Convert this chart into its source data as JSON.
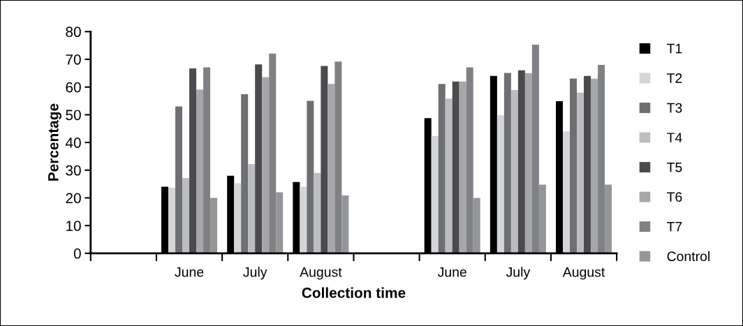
{
  "chart_data": {
    "type": "bar",
    "xlabel": "Collection time",
    "ylabel": "Percentage",
    "categories": [
      null,
      "June",
      "July",
      "August",
      null,
      "June",
      "July",
      "August"
    ],
    "series": [
      {
        "name": "T1",
        "color": "#000000",
        "values": [
          null,
          24,
          28,
          25.7,
          null,
          48.8,
          64,
          54.9
        ]
      },
      {
        "name": "T2",
        "color": "#d4d5d7",
        "values": [
          null,
          23.7,
          25.3,
          24,
          null,
          42.3,
          49.8,
          44
        ]
      },
      {
        "name": "T3",
        "color": "#6e6f72",
        "values": [
          null,
          53,
          57.4,
          55,
          null,
          61.1,
          65.1,
          63.1
        ]
      },
      {
        "name": "T4",
        "color": "#bcbdc0",
        "values": [
          null,
          27.2,
          32.2,
          29,
          null,
          55.8,
          58.9,
          58
        ]
      },
      {
        "name": "T5",
        "color": "#4b4b4d",
        "values": [
          null,
          66.7,
          68.2,
          67.6,
          null,
          62,
          66,
          64
        ]
      },
      {
        "name": "T6",
        "color": "#a6a7aa",
        "values": [
          null,
          59.1,
          63.6,
          61.1,
          null,
          62,
          65,
          63
        ]
      },
      {
        "name": "T7",
        "color": "#808184",
        "values": [
          null,
          67.1,
          72.1,
          69.2,
          null,
          67.1,
          75.3,
          68
        ]
      },
      {
        "name": "Control",
        "color": "#959698",
        "values": [
          null,
          20,
          22,
          20.9,
          null,
          20,
          24.8,
          24.8
        ]
      }
    ],
    "ylim": [
      0,
      80
    ],
    "yticks": [
      0,
      10,
      20,
      30,
      40,
      50,
      60,
      70,
      80
    ],
    "grid": false,
    "legend": "right"
  }
}
